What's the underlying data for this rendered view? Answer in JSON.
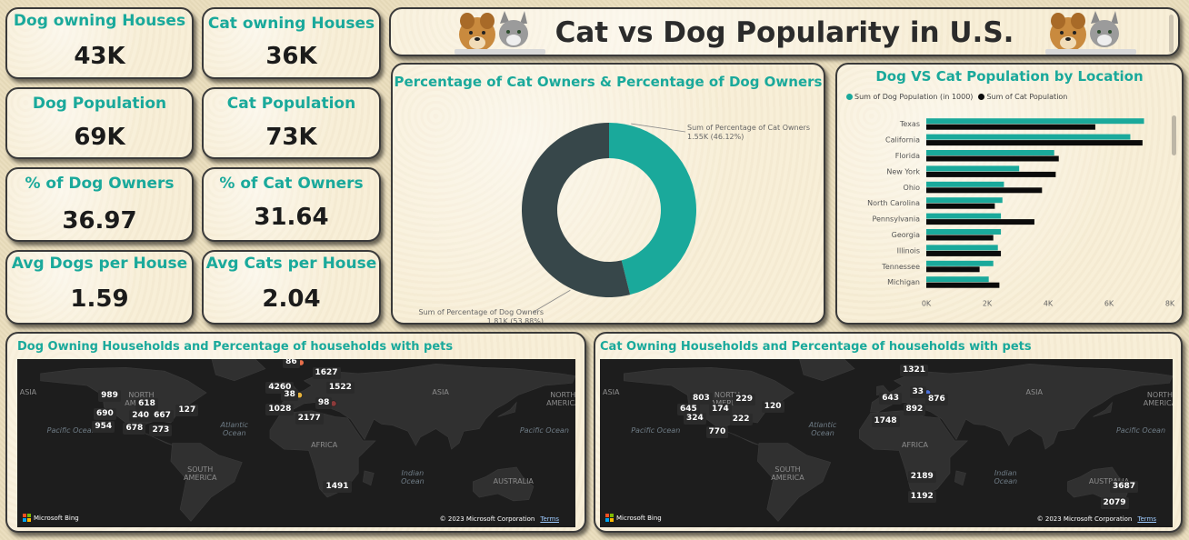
{
  "colors": {
    "teal": "#1aa99b",
    "dark": "#37474a",
    "black": "#0b0b0b",
    "map_bg": "#1d1d1d",
    "land": "#303030"
  },
  "kpis": [
    {
      "title": "Dog owning Houses",
      "value": "43K"
    },
    {
      "title": "Cat owning Houses",
      "value": "36K"
    },
    {
      "title": "Dog Population",
      "value": "69K"
    },
    {
      "title": "Cat Population",
      "value": "73K"
    },
    {
      "title": "% of Dog Owners",
      "value": "36.97"
    },
    {
      "title": "% of Cat Owners",
      "value": "31.64"
    },
    {
      "title": "Avg Dogs per House",
      "value": "1.59"
    },
    {
      "title": "Avg Cats per House",
      "value": "2.04"
    }
  ],
  "header": {
    "title": "Cat vs Dog Popularity in U.S."
  },
  "chart_data": [
    {
      "type": "pie",
      "title": "Percentage of Cat Owners & Percentage of Dog Owners",
      "slices": [
        {
          "name": "Sum of Percentage of Cat Owners",
          "value": 1550,
          "label": "1.55K (46.12%)",
          "color": "#1aa99b"
        },
        {
          "name": "Sum of Percentage of Dog Owners",
          "value": 1810,
          "label": "1.81K (53.88%)",
          "color": "#37474a"
        }
      ]
    },
    {
      "type": "bar",
      "orientation": "horizontal",
      "title": "Dog VS Cat Population by Location",
      "categories": [
        "Texas",
        "California",
        "Florida",
        "New York",
        "Ohio",
        "North Carolina",
        "Pennsylvania",
        "Georgia",
        "Illinois",
        "Tennessee",
        "Michigan"
      ],
      "series": [
        {
          "name": "Sum of Dog Population (in 1000)",
          "color": "#1aa99b",
          "values": [
            7150,
            6700,
            4200,
            3050,
            2550,
            2500,
            2450,
            2450,
            2350,
            2200,
            2050
          ]
        },
        {
          "name": "Sum of Cat Population",
          "color": "#0b0b0b",
          "values": [
            5550,
            7100,
            4350,
            4250,
            3800,
            2250,
            3550,
            2200,
            2450,
            1750,
            2400
          ]
        }
      ],
      "xlim": [
        0,
        8000
      ],
      "xticks": [
        "0K",
        "2K",
        "4K",
        "6K",
        "8K"
      ],
      "legend": "top-left",
      "grid": false
    }
  ],
  "maps": [
    {
      "title": "Dog Owning Households and Percentage of households with pets",
      "region_labels": [
        {
          "text": "ASIA",
          "x": -173,
          "y": 52
        },
        {
          "text": "NORTH\nAMERICA",
          "x": -100,
          "y": 50
        },
        {
          "text": "SOUTH\nAMERICA",
          "x": -62,
          "y": -12
        },
        {
          "text": "AFRICA",
          "x": 18,
          "y": 8
        },
        {
          "text": "AUSTRALIA",
          "x": 140,
          "y": -22
        },
        {
          "text": "ASIA",
          "x": 93,
          "y": 52
        },
        {
          "text": "NORTH\nAMERICA",
          "x": 172,
          "y": 50
        }
      ],
      "ocean_labels": [
        {
          "text": "Pacific Ocean",
          "x": -145,
          "y": 20
        },
        {
          "text": "Atlantic\nOcean",
          "x": -40,
          "y": 25
        },
        {
          "text": "Indian\nOcean",
          "x": 75,
          "y": -15
        },
        {
          "text": "Pacific Ocean",
          "x": 160,
          "y": 20
        }
      ],
      "points": [
        {
          "label": "86",
          "x": 3,
          "y": 77,
          "c": "#e86f4b"
        },
        {
          "label": "1627",
          "x": 22,
          "y": 68,
          "c": "#7d8a54"
        },
        {
          "label": "4260",
          "x": -8,
          "y": 56,
          "c": "#4b6fd6"
        },
        {
          "label": "1522",
          "x": 31,
          "y": 56,
          "c": "#e86f4b"
        },
        {
          "label": "38",
          "x": 2,
          "y": 50,
          "c": "#e9b43c"
        },
        {
          "label": "98",
          "x": 24,
          "y": 43,
          "c": "#8b3a3a"
        },
        {
          "label": "1028",
          "x": -8,
          "y": 38,
          "c": "#cf5a4a"
        },
        {
          "label": "2177",
          "x": 11,
          "y": 30,
          "c": "#a8c93a"
        },
        {
          "label": "989",
          "x": -116,
          "y": 49,
          "c": "#e86f4b"
        },
        {
          "label": "618",
          "x": -92,
          "y": 42,
          "c": "#e86f4b"
        },
        {
          "label": "690",
          "x": -119,
          "y": 34,
          "c": "#1aa99b"
        },
        {
          "label": "240",
          "x": -96,
          "y": 32,
          "c": "#e9b43c"
        },
        {
          "label": "667",
          "x": -82,
          "y": 32,
          "c": "#4b6fd6"
        },
        {
          "label": "127",
          "x": -66,
          "y": 37,
          "c": "#4b6fd6"
        },
        {
          "label": "954",
          "x": -120,
          "y": 23,
          "c": "#e86f4b"
        },
        {
          "label": "678",
          "x": -100,
          "y": 22,
          "c": "#e86f4b"
        },
        {
          "label": "273",
          "x": -83,
          "y": 20,
          "c": "#e86f4b"
        },
        {
          "label": "1491",
          "x": 29,
          "y": -27,
          "c": "#4b6fd6"
        }
      ],
      "bing": "Microsoft Bing",
      "copyright": "© 2023 Microsoft Corporation",
      "terms": "Terms"
    },
    {
      "title": "Cat Owning Households and Percentage of households with pets",
      "region_labels": [
        {
          "text": "ASIA",
          "x": -173,
          "y": 52
        },
        {
          "text": "NORTH\nAMERICA",
          "x": -100,
          "y": 50
        },
        {
          "text": "SOUTH\nAMERICA",
          "x": -62,
          "y": -12
        },
        {
          "text": "AFRICA",
          "x": 18,
          "y": 8
        },
        {
          "text": "AUSTRALIA",
          "x": 140,
          "y": -22
        },
        {
          "text": "ASIA",
          "x": 93,
          "y": 52
        },
        {
          "text": "NORTH\nAMERICA",
          "x": 172,
          "y": 50
        }
      ],
      "ocean_labels": [
        {
          "text": "Pacific Ocean",
          "x": -145,
          "y": 20
        },
        {
          "text": "Atlantic\nOcean",
          "x": -40,
          "y": 25
        },
        {
          "text": "Indian\nOcean",
          "x": 75,
          "y": -15
        },
        {
          "text": "Pacific Ocean",
          "x": 160,
          "y": 20
        }
      ],
      "points": [
        {
          "label": "1321",
          "x": 20,
          "y": 70,
          "c": "#e86f4b"
        },
        {
          "label": "803",
          "x": -112,
          "y": 47,
          "c": "#4b6fd6"
        },
        {
          "label": "229",
          "x": -85,
          "y": 46,
          "c": "#e9b43c"
        },
        {
          "label": "33",
          "x": 26,
          "y": 52,
          "c": "#4b6fd6"
        },
        {
          "label": "643",
          "x": 7,
          "y": 47,
          "c": "#4b6fd6"
        },
        {
          "label": "876",
          "x": 36,
          "y": 46,
          "c": "#a8c93a"
        },
        {
          "label": "120",
          "x": -67,
          "y": 40,
          "c": "#e9b43c"
        },
        {
          "label": "645",
          "x": -120,
          "y": 38,
          "c": "#e86f4b"
        },
        {
          "label": "174",
          "x": -100,
          "y": 38,
          "c": "#e86f4b"
        },
        {
          "label": "892",
          "x": 22,
          "y": 38,
          "c": "#1aa99b"
        },
        {
          "label": "324",
          "x": -116,
          "y": 30,
          "c": "#e86f4b"
        },
        {
          "label": "222",
          "x": -87,
          "y": 29,
          "c": "#e86f4b"
        },
        {
          "label": "1748",
          "x": 2,
          "y": 28,
          "c": "#cf5a4a"
        },
        {
          "label": "770",
          "x": -102,
          "y": 19,
          "c": "#e86f4b"
        },
        {
          "label": "2189",
          "x": 25,
          "y": -18,
          "c": "#e86f4b"
        },
        {
          "label": "1192",
          "x": 25,
          "y": -35,
          "c": "#e86f4b"
        },
        {
          "label": "3687",
          "x": 152,
          "y": -27,
          "c": "#4b6fd6"
        },
        {
          "label": "2079",
          "x": 146,
          "y": -40,
          "c": "#4b6fd6"
        }
      ],
      "bing": "Microsoft Bing",
      "copyright": "© 2023 Microsoft Corporation",
      "terms": "Terms"
    }
  ]
}
